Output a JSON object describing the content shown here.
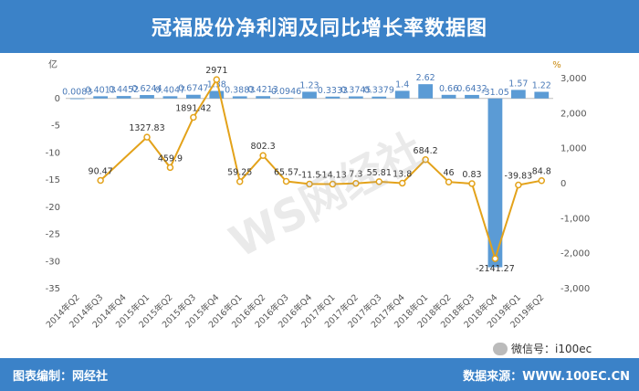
{
  "header": {
    "title": "冠福股份净利润及同比增长率数据图"
  },
  "footer": {
    "left": "图表编制：网经社",
    "right": "数据来源：WWW.100EC.CN"
  },
  "wechat": {
    "label": "微信号：i100ec"
  },
  "watermark": {
    "text": "WS网经社"
  },
  "colors": {
    "header_bg": "#3b82c8",
    "bar": "#5b9bd5",
    "line": "#e3a21a"
  },
  "chart_data": {
    "type": "bar+line",
    "categories": [
      "2014年Q2",
      "2014年Q3",
      "2014年Q4",
      "2015年Q1",
      "2015年Q2",
      "2015年Q3",
      "2015年Q4",
      "2016年Q1",
      "2016年Q2",
      "2016年Q3",
      "2016年Q4",
      "2017年Q1",
      "2017年Q2",
      "2017年Q3",
      "2017年Q4",
      "2018年Q1",
      "2018年Q2",
      "2018年Q3",
      "2018年Q4",
      "2019年Q1",
      "2019年Q2"
    ],
    "y_left": {
      "unit": "亿",
      "ticks": [
        0,
        -5,
        -10,
        -15,
        -20,
        -25,
        -30,
        -35
      ],
      "range": [
        -35,
        5
      ]
    },
    "y_right": {
      "unit": "%",
      "ticks": [
        "3,000",
        "2,000",
        "1,000",
        "0",
        "-1,000",
        "-2,000",
        "-3,000"
      ],
      "range": [
        -3000,
        3000
      ]
    },
    "bar_series": {
      "values": [
        0.0083,
        0.4013,
        0.4452,
        0.6244,
        0.4047,
        0.6747,
        1.38,
        0.3883,
        0.4213,
        0.0946,
        1.23,
        0.3333,
        0.3745,
        0.3379,
        1.4,
        2.62,
        0.66,
        0.6432,
        -31.05,
        1.57,
        1.22
      ],
      "labels": [
        "0.0083",
        "0.4013",
        "0.4452",
        "0.6244",
        "0.4047",
        "0.6747",
        "1.38",
        "0.3883",
        "0.4213",
        "0.0946",
        "1.23",
        "0.3333",
        "0.3745",
        "0.3379",
        "1.4",
        "2.62",
        "0.66",
        "0.6432",
        "-31.05",
        "1.57",
        "1.22"
      ]
    },
    "line_series": {
      "values": [
        null,
        90.47,
        null,
        1327.83,
        459.9,
        1891.42,
        2971,
        59.25,
        802.3,
        65.57,
        -11.5,
        -14.13,
        7.3,
        55.81,
        13.8,
        684.2,
        46,
        0.83,
        -2141.27,
        -39.83,
        84.8
      ],
      "labels": [
        "",
        "90.47",
        "",
        "1327.83",
        "459.9",
        "1891.42",
        "2971",
        "59.25",
        "802.3",
        "65.57",
        "-11.5",
        "-14.13",
        "7.3",
        "55.81",
        "13.8",
        "684.2",
        "46",
        "0.83",
        "-2141.27",
        "-39.83",
        "84.8"
      ]
    }
  }
}
